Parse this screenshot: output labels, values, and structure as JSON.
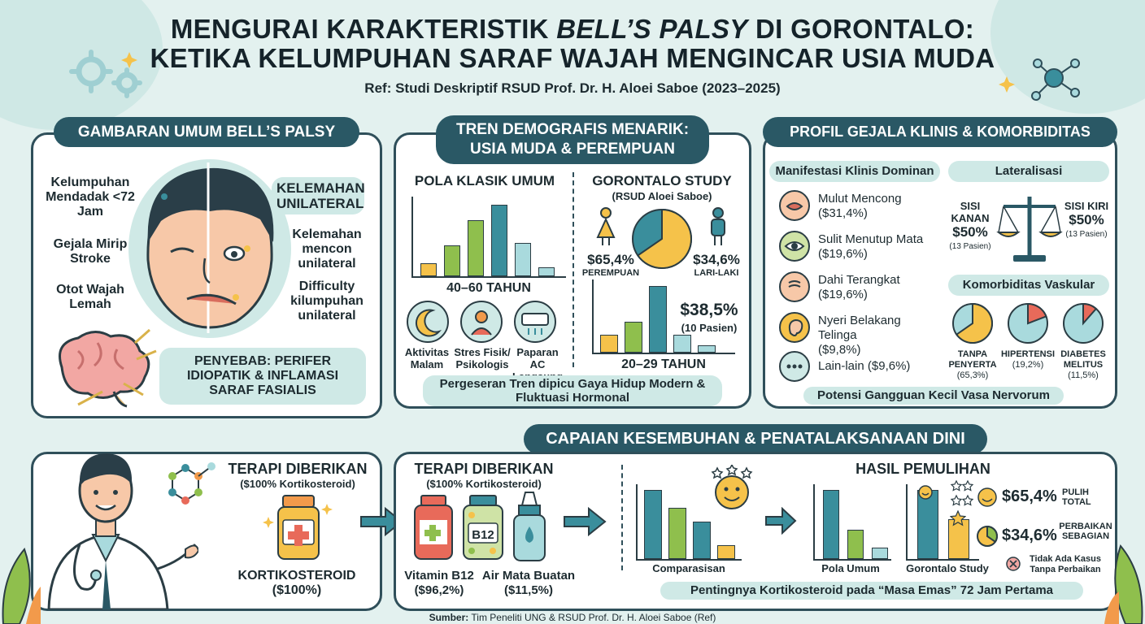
{
  "header": {
    "title_line1_a": "MENGURAI KARAKTERISTIK ",
    "title_line1_b": "BELL’S PALSY",
    "title_line1_c": " DI GORONTALO:",
    "title_line2": "KETIKA KELUMPUHAN SARAF WAJAH MENGINCAR USIA MUDA",
    "ref": "Ref: Studi Deskriptif RSUD Prof. Dr. H. Aloei Saboe (2023–2025)"
  },
  "overview": {
    "heading": "GAMBARAN UMUM BELL’S PALSY",
    "left_labels": [
      "Kelumpuhan Mendadak <72 Jam",
      "Gejala Mirip Stroke",
      "Otot Wajah Lemah"
    ],
    "weakness_tag": "KELEMAHAN UNILATERAL",
    "right_labels": [
      "Kelemahan mencon unilateral",
      "Difficulty kilumpuhan unilateral"
    ],
    "cause": "PENYEBAB: PERIFER IDIOPATIK & INFLAMASI SARAF FASIALIS"
  },
  "demographics": {
    "heading": "TREN DEMOGRAFIS MENARIK: USIA MUDA & PEREMPUAN",
    "general_title": "POLA KLASIK UMUM",
    "general_age": "40–60 TAHUN",
    "general_bars": [
      12,
      28,
      50,
      64,
      30,
      8
    ],
    "triggers": [
      "Aktivitas Malam",
      "Stres Fisik/ Psikologis",
      "Paparan AC Langsung"
    ],
    "study_title": "GORONTALO STUDY",
    "study_sub": "(RSUD Aloei Saboe)",
    "female_pct": "$65,4%",
    "female_label": "PEREMPUAN",
    "male_pct": "$34,6%",
    "male_label": "LARI-LAKI",
    "pie_female_fraction": 0.654,
    "young_pct": "$38,5%",
    "young_count": "(10 Pasien)",
    "study_age": "20–29 TAHUN",
    "study_bars": [
      14,
      24,
      52,
      14,
      6
    ],
    "footer": "Pergeseran Tren dipicu Gaya Hidup Modern & Fluktuasi Hormonal"
  },
  "clinical": {
    "heading": "PROFIL GEJALA KLINIS & KOMORBIDITAS",
    "manifest_title": "Manifestasi Klinis Dominan",
    "symptoms": [
      {
        "name": "Mulut Mencong",
        "value": "($31,4%)"
      },
      {
        "name": "Sulit Menutup Mata",
        "value": "($19,6%)"
      },
      {
        "name": "Dahi Terangkat",
        "value": "($19,6%)"
      },
      {
        "name": "Nyeri Belakang Telinga",
        "value": "($9,8%)"
      },
      {
        "name": "Lain-lain",
        "value": "($9,6%)"
      }
    ],
    "lateral_title": "Lateralisasi",
    "right_side": {
      "label": "SISI KANAN",
      "pct": "$50%",
      "count": "(13 Pasien)"
    },
    "left_side": {
      "label": "SISI KIRI",
      "pct": "$50%",
      "count": "(13 Pasien)"
    },
    "comorb_title": "Komorbiditas Vaskular",
    "comorbidities": [
      {
        "label": "TANPA PENYERTA",
        "value": "(65,3%)",
        "fraction": 0.653
      },
      {
        "label": "HIPERTENSI",
        "value": "(19,2%)",
        "fraction": 0.192
      },
      {
        "label": "DIABETES MELITUS",
        "value": "(11,5%)",
        "fraction": 0.115
      }
    ],
    "footer": "Potensi Gangguan Kecil Vasa Nervorum"
  },
  "recovery": {
    "heading": "CAPAIAN KESEMBUHAN & PENATALAKSANAAN DINI",
    "therapy_title": "TERAPI DIBERIKAN",
    "therapy_sub": "($100% Kortikosteroid)",
    "cortico_label": "KORTIKOSTEROID",
    "cortico_value": "($100%)",
    "therapy2_title": "TERAPI DIBERIKAN",
    "therapy2_sub": "($100% Kortikosteroid)",
    "b12_label": "B12",
    "vit_label": "Vitamin B12",
    "vit_value": "($96,2%)",
    "tears_label": "Air Mata Buatan",
    "tears_value": "($11,5%)",
    "result_title": "HASIL PEMULIHAN",
    "compare_label": "Comparasisan",
    "compare_bars": [
      70,
      52,
      38,
      14
    ],
    "general_label": "Pola Umum",
    "general_bars": [
      72,
      30,
      12
    ],
    "study_label": "Gorontalo Study",
    "study_bars": [
      70,
      40
    ],
    "full_pct": "$65,4%",
    "full_label": "PULIH TOTAL",
    "partial_pct": "$34,6%",
    "partial_label": "PERBAIKAN SEBAGIAN",
    "none_label": "Tidak Ada Kasus Tanpa Perbaikan",
    "footer": "Pentingnya Kortikosteroid pada “Masa Emas” 72 Jam Pertama"
  },
  "source": {
    "prefix": "Sumber:",
    "text": " Tim Peneliti UNG & RSUD Prof. Dr. H. Aloei Saboe (Ref)"
  },
  "colors": {
    "teal": "#3a8e9c",
    "green": "#8fbf4d",
    "yellow": "#f5c24a",
    "orange": "#f29a4b",
    "blue": "#a9dadd",
    "dark": "#2a5865",
    "red": "#e86a5a"
  }
}
